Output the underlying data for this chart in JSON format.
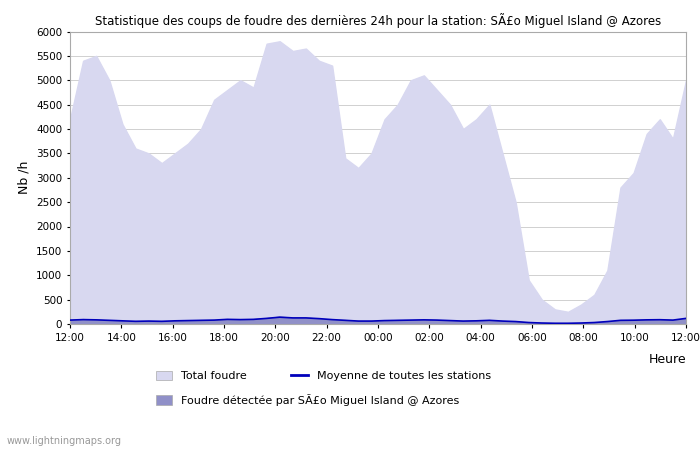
{
  "title": "Statistique des coups de foudre des dernières 24h pour la station: SÃ£o Miguel Island @ Azores",
  "ylabel": "Nb /h",
  "xlabel_right": "Heure",
  "watermark": "www.lightningmaps.org",
  "ylim": [
    0,
    6000
  ],
  "yticks": [
    0,
    500,
    1000,
    1500,
    2000,
    2500,
    3000,
    3500,
    4000,
    4500,
    5000,
    5500,
    6000
  ],
  "xtick_labels": [
    "12:00",
    "14:00",
    "16:00",
    "18:00",
    "20:00",
    "22:00",
    "00:00",
    "02:00",
    "04:00",
    "06:00",
    "08:00",
    "10:00",
    "12:00"
  ],
  "bg_color": "#ffffff",
  "grid_color": "#d0d0d0",
  "fill_color_total": "#d8d8f0",
  "fill_color_station": "#9090c8",
  "line_color_mean": "#0000bb",
  "total_foudre": [
    4200,
    5400,
    5500,
    5000,
    4100,
    3600,
    3500,
    3300,
    3500,
    3700,
    4000,
    4600,
    4800,
    5000,
    4850,
    5750,
    5800,
    5600,
    5650,
    5400,
    5300,
    3400,
    3200,
    3500,
    4200,
    4500,
    5000,
    5100,
    4800,
    4500,
    4000,
    4200,
    4500,
    3500,
    2500,
    900,
    500,
    300,
    250,
    400,
    600,
    1100,
    2800,
    3100,
    3900,
    4200,
    3800,
    5000
  ],
  "station_foudre": [
    80,
    100,
    90,
    70,
    60,
    50,
    60,
    50,
    60,
    70,
    80,
    80,
    100,
    90,
    100,
    120,
    150,
    130,
    130,
    110,
    90,
    80,
    60,
    60,
    70,
    80,
    80,
    90,
    80,
    70,
    60,
    70,
    80,
    60,
    50,
    30,
    20,
    15,
    15,
    20,
    30,
    50,
    80,
    80,
    90,
    90,
    80,
    120
  ],
  "mean_line": [
    80,
    90,
    85,
    75,
    65,
    55,
    60,
    55,
    65,
    70,
    75,
    80,
    95,
    90,
    95,
    115,
    140,
    125,
    125,
    110,
    90,
    75,
    60,
    60,
    70,
    75,
    80,
    85,
    80,
    70,
    60,
    65,
    75,
    60,
    50,
    30,
    20,
    15,
    15,
    20,
    30,
    50,
    75,
    78,
    85,
    88,
    80,
    115
  ]
}
